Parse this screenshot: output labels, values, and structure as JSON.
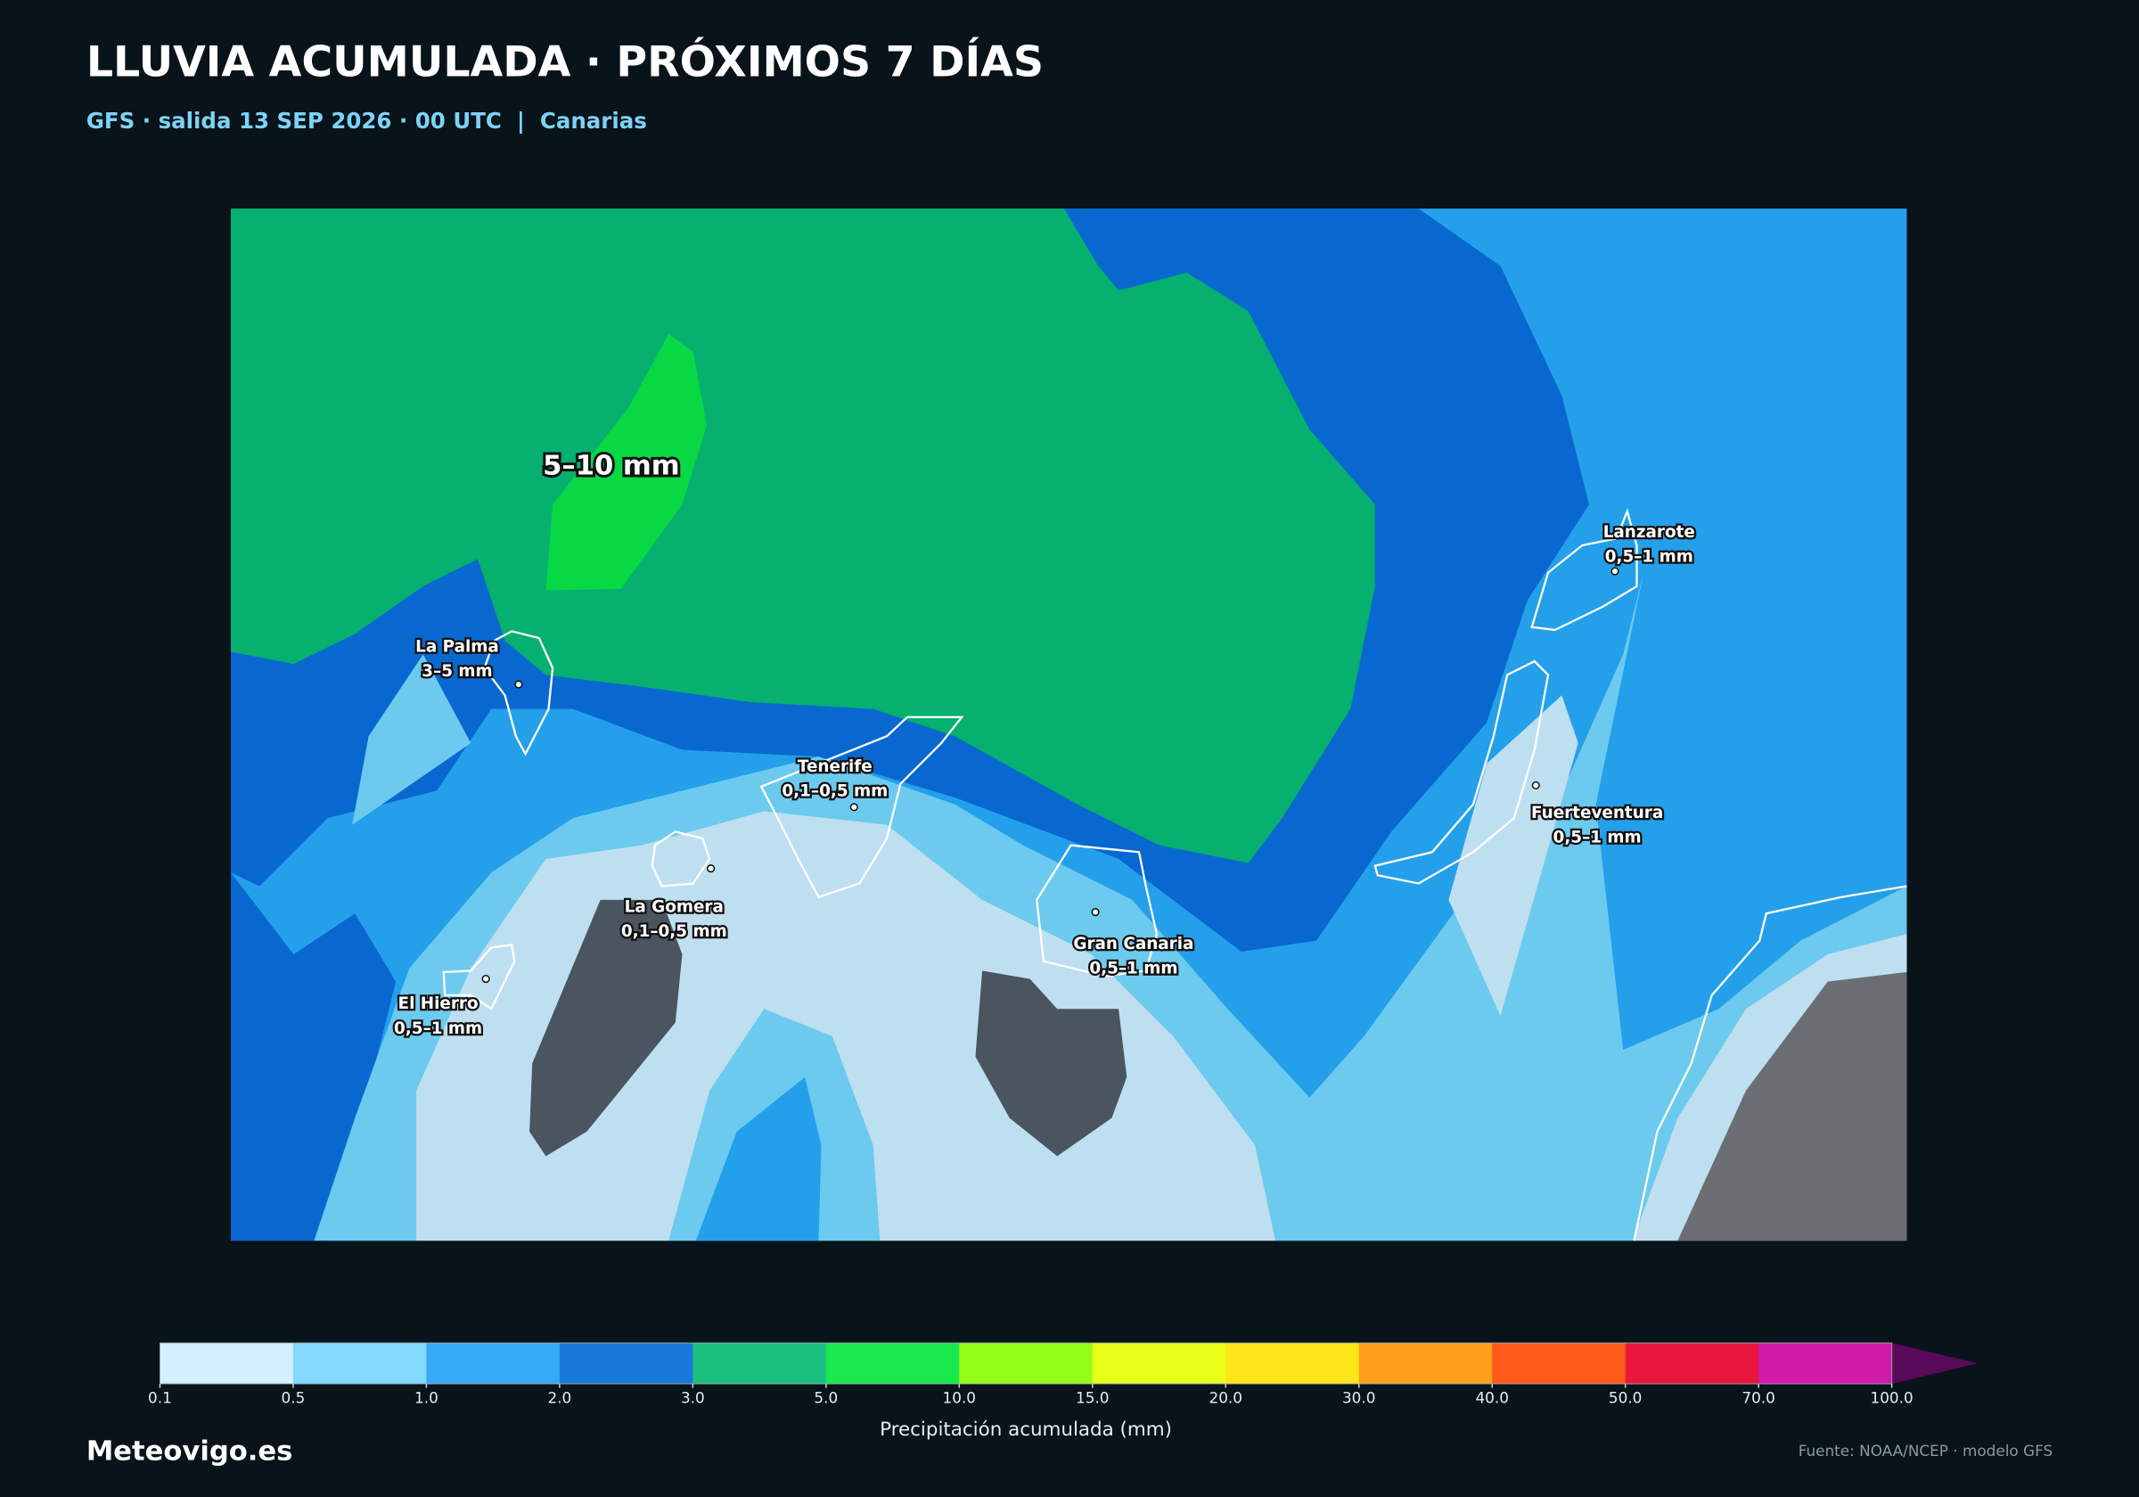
{
  "header": {
    "title": "LLUVIA ACUMULADA · PRÓXIMOS 7 DÍAS",
    "subtitle": "GFS · salida 13 SEP 2026 · 00 UTC  |  Canarias"
  },
  "map": {
    "annotation": "5–10 mm",
    "islands": [
      {
        "name": "La Palma",
        "label": "3–5 mm"
      },
      {
        "name": "Tenerife",
        "label": "0,1–0,5 mm"
      },
      {
        "name": "La Gomera",
        "label": "0,1–0,5 mm"
      },
      {
        "name": "El Hierro",
        "label": "0,5–1 mm"
      },
      {
        "name": "Gran Canaria",
        "label": "0,5–1 mm"
      },
      {
        "name": "Lanzarote",
        "label": "0,5–1 mm"
      },
      {
        "name": "Fuerteventura",
        "label": "0,5–1 mm"
      }
    ]
  },
  "colorbar": {
    "ticks": [
      0.1,
      0.5,
      {
        "value": 1,
        "label": "1.0"
      },
      {
        "value": 2,
        "label": "2.0"
      },
      {
        "value": 3,
        "label": "3.0"
      },
      {
        "value": 5,
        "label": "5.0"
      },
      {
        "value": 10,
        "label": "10.0"
      },
      {
        "value": 15,
        "label": "15.0"
      },
      {
        "value": 20,
        "label": "20.0"
      },
      {
        "value": 30,
        "label": "30.0"
      },
      {
        "value": 40,
        "label": "40.0"
      },
      {
        "value": 50,
        "label": "50.0"
      },
      {
        "value": 70,
        "label": "70.0"
      },
      {
        "value": 100,
        "label": "100.0"
      }
    ],
    "colors": [
      "#d4f0ff",
      "#82d8ff",
      "#36aaf5",
      "#1a78dc",
      "#1ac080",
      "#1ae84c",
      "#96ff1a",
      "#e8ff1a",
      "#ffe41a",
      "#ffa01a",
      "#ff5a1a",
      "#e8163c",
      "#d01aaa"
    ],
    "extend_color": "#5a0a5a",
    "label": "Precipitación acumulada (mm)"
  },
  "footer": {
    "brand": "Meteovigo.es",
    "source": "Fuente: NOAA/NCEP · modelo GFS"
  }
}
